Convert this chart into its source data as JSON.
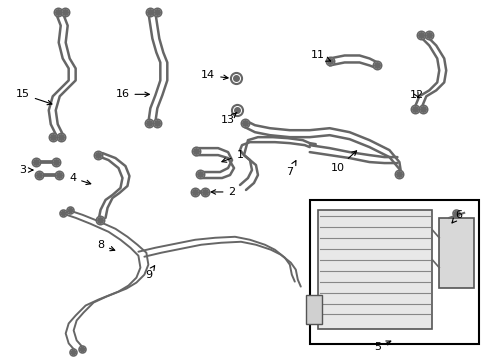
{
  "bg_color": "#ffffff",
  "fig_width": 4.9,
  "fig_height": 3.6,
  "dpi": 100,
  "line_color": "#666666",
  "label_fontsize": 8.0,
  "label_color": "#000000",
  "lw_hose": 1.8,
  "lw_pipe": 1.4
}
